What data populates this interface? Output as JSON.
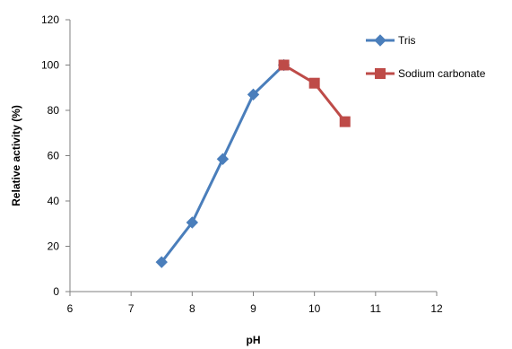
{
  "chart_data": {
    "type": "line",
    "title": "",
    "xlabel": "pH",
    "ylabel": "Relative activity (%)",
    "xlim": [
      6,
      12
    ],
    "ylim": [
      0,
      120
    ],
    "xticks": [
      6,
      7,
      8,
      9,
      10,
      11,
      12
    ],
    "yticks": [
      0,
      20,
      40,
      60,
      80,
      100,
      120
    ],
    "grid": false,
    "legend_position": "top-right",
    "series": [
      {
        "name": "Tris",
        "color": "#4a7ebb",
        "marker": "diamond",
        "x": [
          7.5,
          8,
          8.5,
          9,
          9.5
        ],
        "y": [
          13,
          30.5,
          58.5,
          87,
          100
        ]
      },
      {
        "name": "Sodium carbonate",
        "color": "#be4b48",
        "marker": "square",
        "x": [
          9.5,
          10,
          10.5
        ],
        "y": [
          100,
          92,
          75
        ]
      }
    ]
  }
}
